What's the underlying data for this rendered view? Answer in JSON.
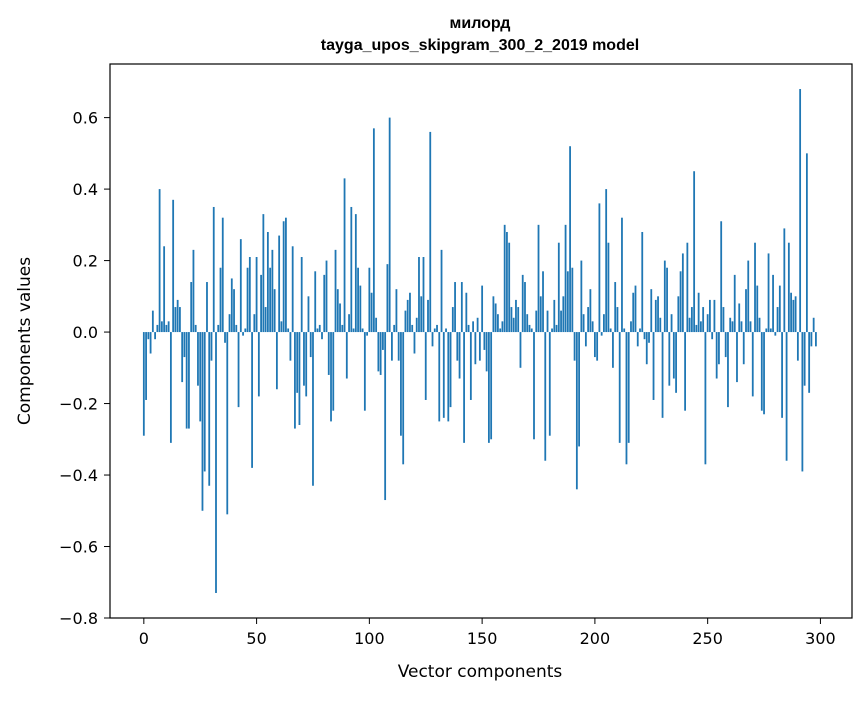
{
  "chart_data": {
    "type": "bar",
    "title": "милорд",
    "subtitle": "tayga_upos_skipgram_300_2_2019 model",
    "xlabel": "Vector components",
    "ylabel": "Components values",
    "xlim": [
      -15,
      314
    ],
    "ylim": [
      -0.8,
      0.75
    ],
    "x_ticks": [
      0,
      50,
      100,
      150,
      200,
      250,
      300
    ],
    "x_tick_labels": [
      "0",
      "50",
      "100",
      "150",
      "200",
      "250",
      "300"
    ],
    "y_ticks": [
      -0.8,
      -0.6,
      -0.4,
      -0.2,
      0.0,
      0.2,
      0.4,
      0.6
    ],
    "y_tick_labels": [
      "−0.8",
      "−0.6",
      "−0.4",
      "−0.2",
      "0.0",
      "0.2",
      "0.4",
      "0.6"
    ],
    "grid": false,
    "bar_color": "#1f77b4",
    "categories_start": 0,
    "values": [
      -0.29,
      -0.19,
      -0.02,
      -0.06,
      0.06,
      -0.02,
      0.02,
      0.4,
      0.03,
      0.24,
      0.02,
      0.03,
      -0.31,
      0.37,
      0.07,
      0.09,
      0.07,
      -0.14,
      -0.07,
      -0.27,
      -0.27,
      0.14,
      0.23,
      0.02,
      -0.15,
      -0.25,
      -0.5,
      -0.39,
      0.14,
      -0.43,
      -0.08,
      0.35,
      -0.73,
      0.02,
      0.18,
      0.32,
      -0.03,
      -0.51,
      0.05,
      0.15,
      0.12,
      0.02,
      -0.21,
      0.26,
      -0.01,
      0.01,
      0.18,
      0.21,
      -0.38,
      0.05,
      0.21,
      -0.18,
      0.16,
      0.33,
      0.07,
      0.28,
      0.18,
      0.23,
      0.12,
      -0.16,
      0.27,
      0.03,
      0.31,
      0.32,
      0.01,
      -0.08,
      0.24,
      -0.27,
      -0.17,
      -0.26,
      0.21,
      -0.15,
      -0.18,
      0.1,
      -0.07,
      -0.43,
      0.17,
      0.01,
      0.02,
      -0.02,
      0.16,
      0.2,
      -0.12,
      -0.25,
      -0.22,
      0.23,
      0.12,
      0.08,
      0.02,
      0.43,
      -0.13,
      0.05,
      0.35,
      0.01,
      0.33,
      0.18,
      0.13,
      0.01,
      -0.22,
      -0.01,
      0.18,
      0.11,
      0.57,
      0.04,
      -0.11,
      -0.12,
      -0.05,
      -0.47,
      0.19,
      0.6,
      -0.08,
      0.02,
      0.12,
      -0.08,
      -0.29,
      -0.37,
      0.06,
      0.09,
      0.11,
      0.02,
      -0.06,
      0.04,
      0.21,
      0.1,
      0.21,
      -0.19,
      0.09,
      0.56,
      -0.04,
      0.01,
      0.02,
      -0.25,
      0.23,
      -0.24,
      0.01,
      -0.25,
      -0.21,
      0.07,
      0.14,
      -0.08,
      -0.13,
      0.14,
      -0.31,
      0.11,
      0.02,
      -0.19,
      0.03,
      -0.09,
      0.04,
      -0.08,
      0.13,
      -0.05,
      -0.11,
      -0.31,
      -0.3,
      0.1,
      0.08,
      0.05,
      0.01,
      0.03,
      0.3,
      0.28,
      0.25,
      0.07,
      0.04,
      0.09,
      0.07,
      -0.1,
      0.16,
      0.14,
      0.05,
      0.02,
      0.01,
      -0.3,
      0.06,
      0.3,
      0.1,
      0.17,
      -0.36,
      0.06,
      -0.29,
      0.01,
      0.09,
      0.02,
      0.25,
      0.06,
      0.1,
      0.3,
      0.17,
      0.52,
      0.18,
      -0.08,
      -0.44,
      -0.32,
      0.2,
      0.05,
      -0.04,
      0.07,
      0.12,
      0.03,
      -0.07,
      -0.08,
      0.36,
      -0.01,
      0.05,
      0.4,
      0.25,
      0.01,
      -0.1,
      0.14,
      0.07,
      -0.31,
      0.32,
      0.01,
      -0.37,
      -0.31,
      0.03,
      0.11,
      0.13,
      -0.04,
      0.01,
      0.28,
      -0.02,
      -0.09,
      -0.03,
      0.12,
      -0.19,
      0.09,
      0.1,
      0.04,
      -0.24,
      0.2,
      0.18,
      -0.15,
      0.05,
      -0.13,
      -0.17,
      0.1,
      0.17,
      0.22,
      -0.22,
      0.25,
      0.04,
      0.07,
      0.45,
      0.02,
      0.11,
      0.03,
      0.07,
      -0.37,
      0.05,
      0.09,
      -0.02,
      0.09,
      -0.13,
      -0.09,
      0.31,
      0.07,
      -0.07,
      -0.21,
      0.04,
      0.03,
      0.16,
      -0.14,
      0.08,
      0.03,
      -0.09,
      0.12,
      0.2,
      0.03,
      -0.18,
      0.25,
      0.13,
      0.04,
      -0.22,
      -0.23,
      0.01,
      0.22,
      0.01,
      0.16,
      -0.01,
      0.07,
      0.13,
      -0.24,
      0.29,
      -0.36,
      0.25,
      0.11,
      0.09,
      0.1,
      -0.08,
      0.68,
      -0.39,
      -0.15,
      0.5,
      -0.17,
      -0.04,
      0.04,
      -0.04
    ]
  }
}
